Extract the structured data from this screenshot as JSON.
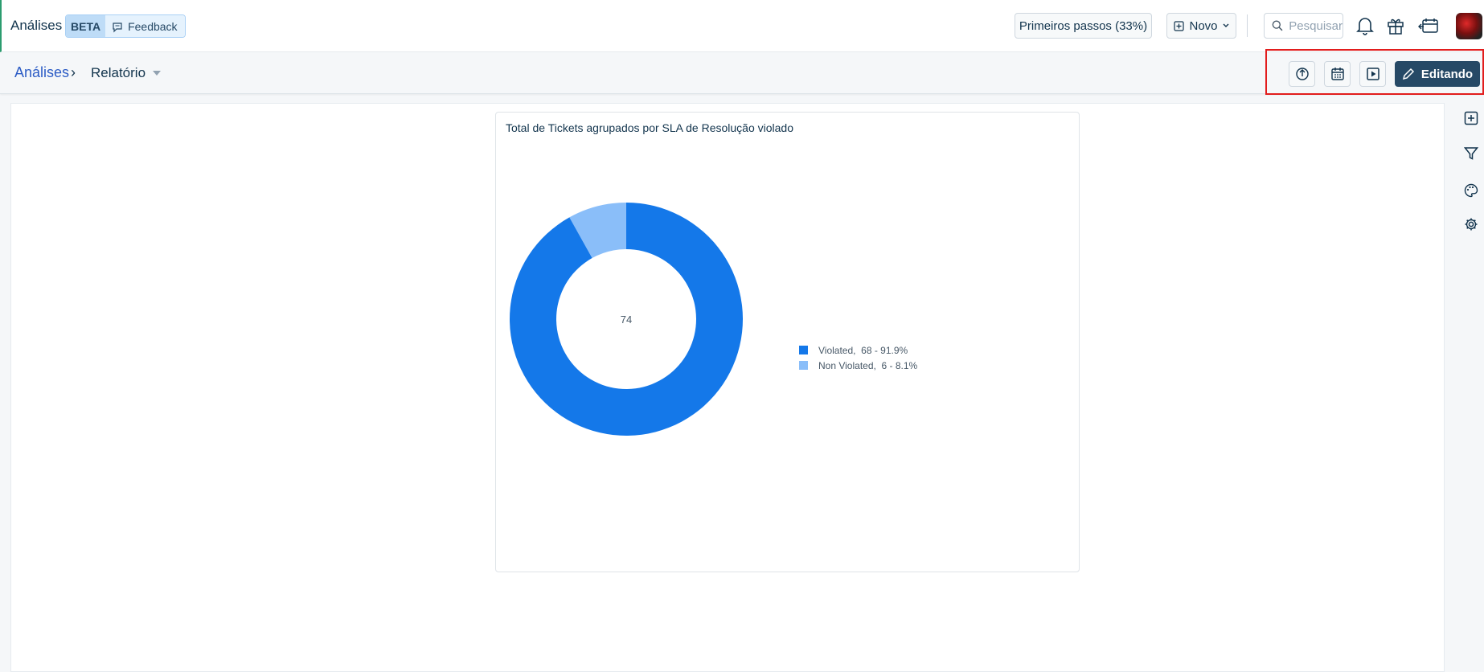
{
  "header": {
    "app_title": "Análises",
    "beta_badge": "BETA",
    "feedback_label": "Feedback",
    "first_steps_label": "Primeiros passos (33%)",
    "new_label": "Novo",
    "search_placeholder": "Pesquisar",
    "icons": [
      "bell-icon",
      "gift-icon",
      "announcement-icon",
      "avatar"
    ]
  },
  "breadcrumb": {
    "root": "Análises",
    "separator": "›",
    "current": "Relatório"
  },
  "toolbar": {
    "icons": [
      "export-icon",
      "calendar-icon",
      "present-icon"
    ],
    "edit_label": "Editando"
  },
  "right_rail": {
    "icons": [
      "add-widget-icon",
      "filter-icon",
      "palette-icon",
      "settings-icon"
    ]
  },
  "colors": {
    "violated": "#1478e9",
    "non_violated": "#8abef9",
    "highlight": "#e21d1d",
    "edit_button": "#264966"
  },
  "chart_data": {
    "type": "pie",
    "style": "donut",
    "title": "Total de Tickets agrupados por SLA de Resolução violado",
    "center_label": "74",
    "categories": [
      "Violated",
      "Non Violated"
    ],
    "values": [
      68,
      6
    ],
    "percentages": [
      "91.9%",
      "8.1%"
    ],
    "legend": [
      {
        "name": "Violated",
        "text": "Violated,  68 - 91.9%"
      },
      {
        "name": "Non Violated",
        "text": "Non Violated,  6 - 8.1%"
      }
    ],
    "legend_position": "right"
  }
}
